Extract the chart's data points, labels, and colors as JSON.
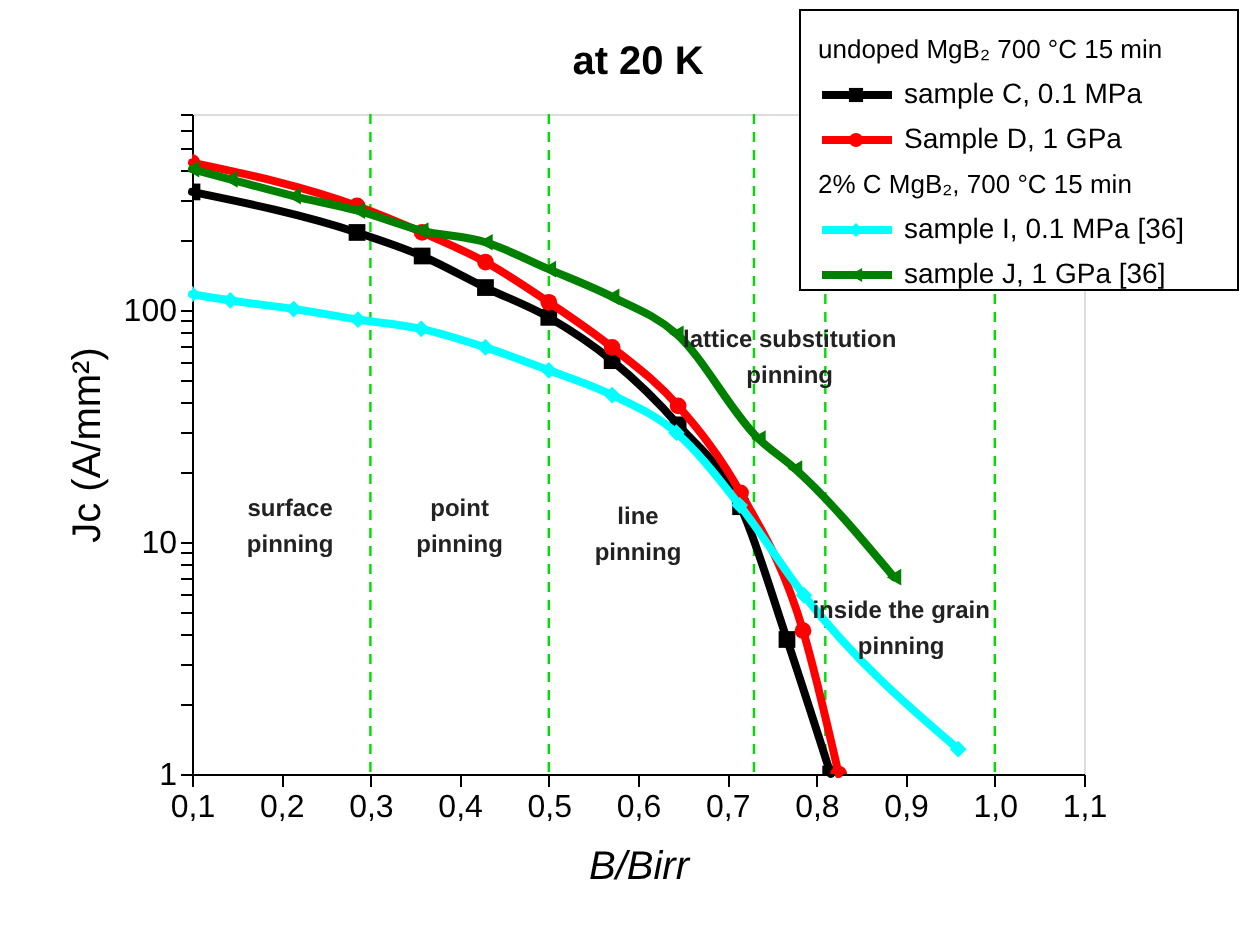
{
  "chart_data": {
    "type": "line",
    "title": "at 20 K",
    "xlabel": "B/Birr",
    "ylabel": "Jc (A/mm²)",
    "log": "y",
    "grid": false,
    "legend": "top right",
    "line_style": "solid",
    "xlim": [
      0.1,
      1.1
    ],
    "xticks": [
      {
        "value": 0.1,
        "label": "0,1"
      },
      {
        "value": 0.2,
        "label": "0,2"
      },
      {
        "value": 0.3,
        "label": "0,3"
      },
      {
        "value": 0.4,
        "label": "0,4"
      },
      {
        "value": 0.5,
        "label": "0,5"
      },
      {
        "value": 0.6,
        "label": "0,6"
      },
      {
        "value": 0.7,
        "label": "0,7"
      },
      {
        "value": 0.8,
        "label": "0,8"
      },
      {
        "value": 0.9,
        "label": "0,9"
      },
      {
        "value": 1.0,
        "label": "1,0"
      },
      {
        "value": 1.1,
        "label": "1,1"
      }
    ],
    "ylim": [
      1,
      700
    ],
    "yticks": [
      1,
      {
        "value": 2,
        "label": null
      },
      {
        "value": 3,
        "label": null
      },
      {
        "value": 4,
        "label": null
      },
      {
        "value": 5,
        "label": null
      },
      {
        "value": 6,
        "label": null
      },
      {
        "value": 7,
        "label": null
      },
      {
        "value": 8,
        "label": null
      },
      {
        "value": 9,
        "label": null
      },
      10,
      {
        "value": 20,
        "label": null
      },
      {
        "value": 30,
        "label": null
      },
      {
        "value": 40,
        "label": null
      },
      {
        "value": 50,
        "label": null
      },
      {
        "value": 60,
        "label": null
      },
      {
        "value": 70,
        "label": null
      },
      {
        "value": 80,
        "label": null
      },
      {
        "value": 90,
        "label": null
      },
      100,
      {
        "value": 200,
        "label": null
      },
      {
        "value": 300,
        "label": null
      },
      {
        "value": 400,
        "label": null
      },
      {
        "value": 500,
        "label": null
      },
      {
        "value": 600,
        "label": null
      },
      {
        "value": 700,
        "label": null
      }
    ],
    "series": [
      {
        "name": "sample C, 0.1 MPa",
        "color": "#000000",
        "marker": "square",
        "x": [
          0.1,
          0.285,
          0.358,
          0.429,
          0.5,
          0.571,
          0.645,
          0.715,
          0.767,
          0.816
        ],
        "values": [
          323,
          216,
          171,
          125,
          93,
          60.5,
          32,
          14.2,
          3.8,
          1
        ]
      },
      {
        "name": "Sample D, 1 GPa",
        "color": "#ff0000",
        "marker": "circle",
        "x": [
          0.1,
          0.285,
          0.358,
          0.429,
          0.5,
          0.571,
          0.645,
          0.715,
          0.785,
          0.825
        ],
        "values": [
          432,
          281,
          216,
          161,
          108,
          69,
          38.6,
          16.3,
          4.15,
          1
        ]
      },
      {
        "name": "sample I, 0.1 MPa [36]",
        "color": "#00ffff",
        "marker": "diamond",
        "x": [
          0.1,
          0.143,
          0.214,
          0.286,
          0.357,
          0.429,
          0.5,
          0.571,
          0.643,
          0.714,
          0.786,
          0.959
        ],
        "values": [
          117,
          110,
          101,
          91,
          83,
          69,
          55,
          43,
          29.6,
          14.4,
          5.9,
          1.28
        ]
      },
      {
        "name": "sample J, 1 GPa [36]",
        "color": "#008000",
        "marker": "triangle",
        "x": [
          0.1,
          0.143,
          0.214,
          0.286,
          0.357,
          0.429,
          0.5,
          0.571,
          0.643,
          0.735,
          0.776,
          0.887
        ],
        "values": [
          405,
          366,
          310,
          268,
          220,
          196,
          150,
          114,
          79,
          27.9,
          20.7,
          7.05
        ]
      }
    ],
    "ref_lines": [
      {
        "axis": "x",
        "value": 0.3,
        "color": "#00dd00",
        "line_style": "dashed"
      },
      {
        "axis": "x",
        "value": 0.5,
        "color": "#00dd00",
        "line_style": "dashed"
      },
      {
        "axis": "x",
        "value": 0.73,
        "color": "#00dd00",
        "line_style": "dashed"
      },
      {
        "axis": "x",
        "value": 0.81,
        "color": "#00dd00",
        "line_style": "dashed"
      },
      {
        "axis": "x",
        "value": 1.0,
        "color": "#00dd00",
        "line_style": "dashed"
      }
    ],
    "annotations": [
      "undoped MgB₂ 700 °C 15 min",
      "2% C MgB₂, 700 °C 15 min",
      "surface\npinning",
      "point\npinning",
      "line\npinning",
      "lattice substitution\npinning",
      "inside the grain\npinning"
    ]
  }
}
